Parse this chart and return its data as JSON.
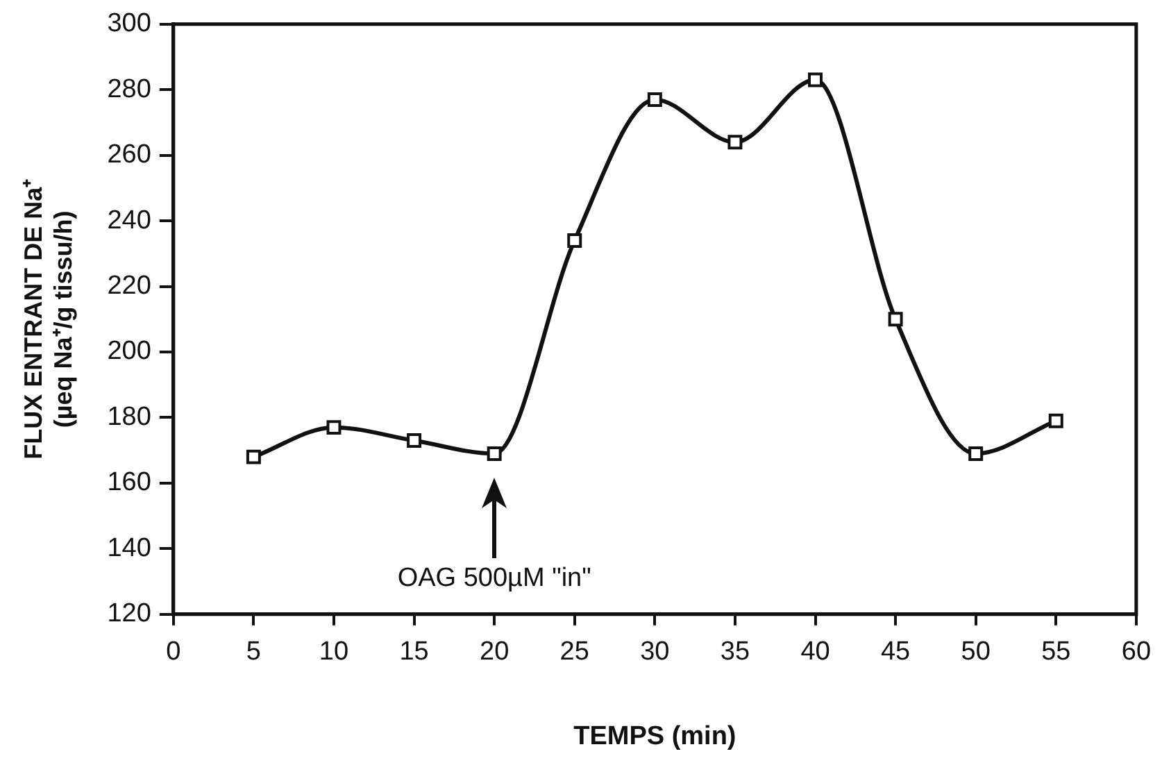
{
  "chart_data": {
    "type": "line",
    "xlabel": "TEMPS (min)",
    "ylabel": "FLUX ENTRANT DE Na⁺\n(µeq Na⁺/g tissu/h)",
    "x": [
      5,
      10,
      15,
      20,
      25,
      30,
      35,
      40,
      45,
      50,
      55
    ],
    "series": [
      {
        "color": "#111111",
        "values": [
          168,
          177,
          173,
          169,
          234,
          277,
          264,
          283,
          210,
          169,
          179
        ]
      }
    ],
    "xlim": [
      0,
      60
    ],
    "xticks": [
      0,
      5,
      10,
      15,
      20,
      25,
      30,
      35,
      40,
      45,
      50,
      55,
      60
    ],
    "ylim": [
      120,
      300
    ],
    "yticks": [
      120,
      140,
      160,
      180,
      200,
      220,
      240,
      260,
      280,
      300
    ],
    "grid": false,
    "legend": false,
    "marker": "square",
    "line_style": "solid",
    "annotations": [
      "OAG 500µM \"in\""
    ]
  }
}
